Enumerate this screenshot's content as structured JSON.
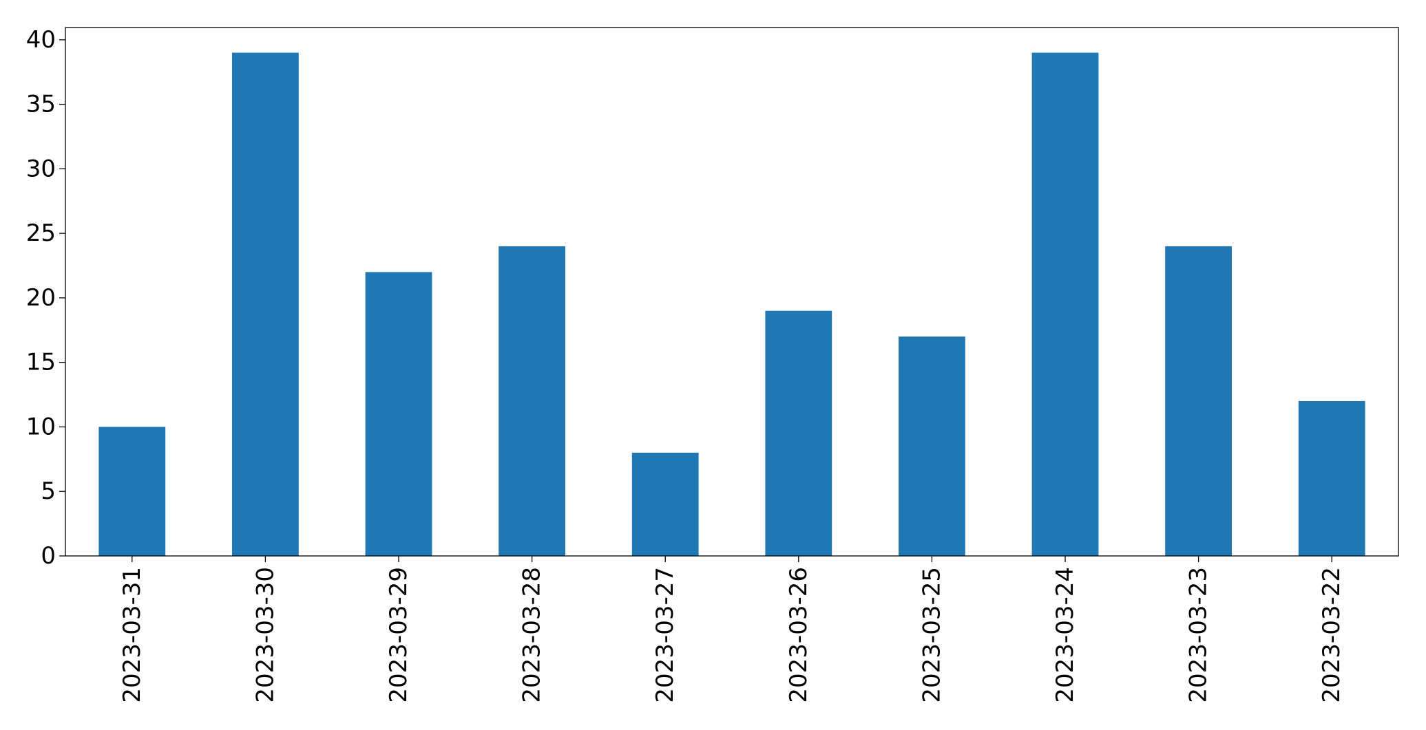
{
  "chart_data": {
    "type": "bar",
    "categories": [
      "2023-03-31",
      "2023-03-30",
      "2023-03-29",
      "2023-03-28",
      "2023-03-27",
      "2023-03-26",
      "2023-03-25",
      "2023-03-24",
      "2023-03-23",
      "2023-03-22"
    ],
    "values": [
      10,
      39,
      22,
      24,
      8,
      19,
      17,
      39,
      24,
      12
    ],
    "color": "#1f77b4",
    "ylim": [
      0,
      40.95
    ],
    "yticks": [
      0,
      5,
      10,
      15,
      20,
      25,
      30,
      35,
      40
    ],
    "grid": false
  }
}
